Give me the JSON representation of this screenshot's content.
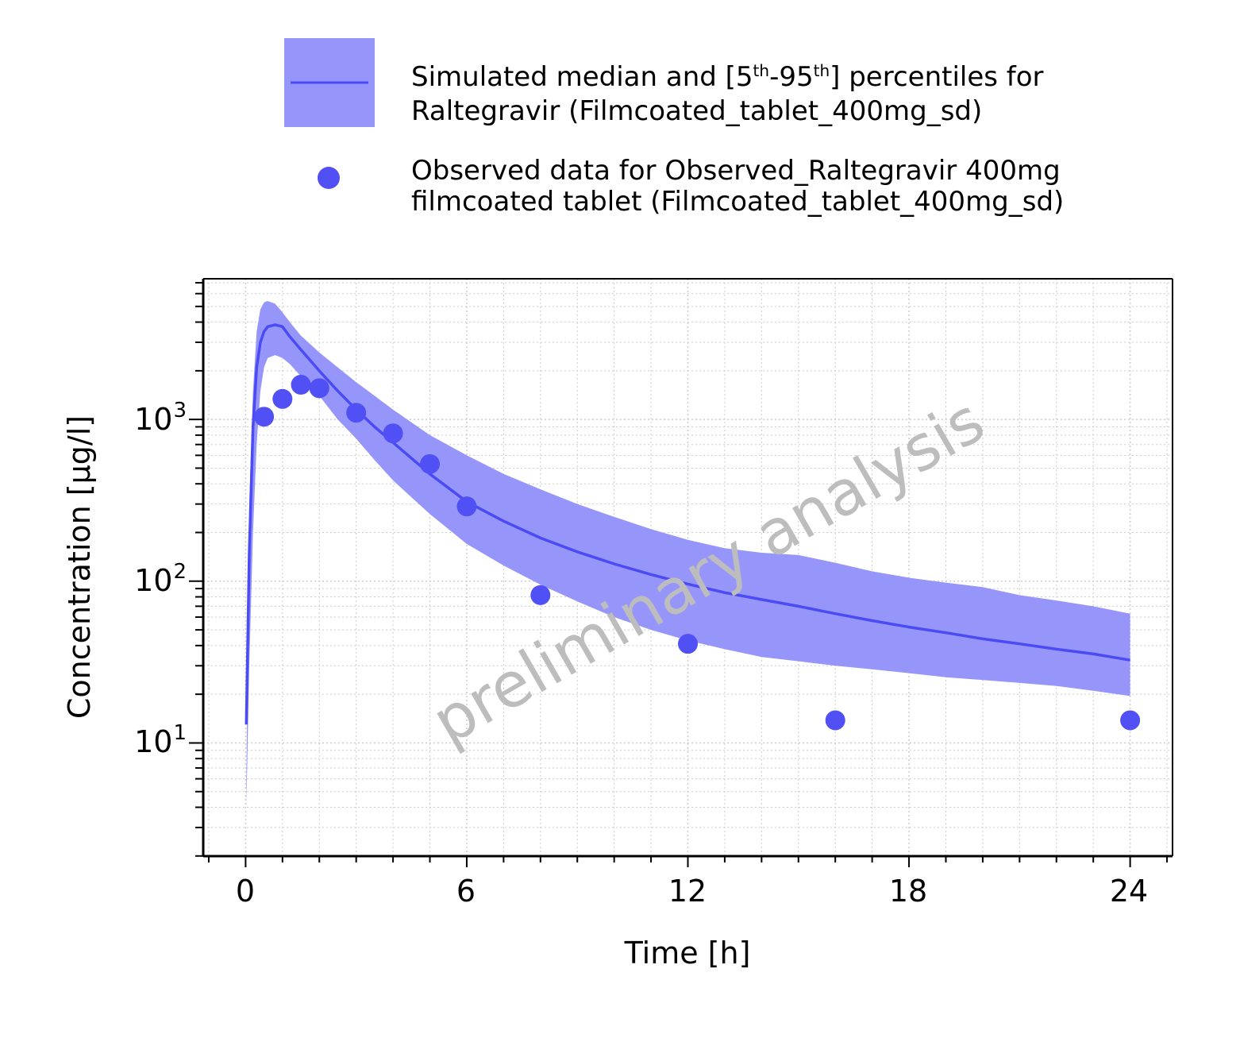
{
  "legend": {
    "band_text_line1_a": "Simulated median and [5",
    "band_sup1": "th",
    "band_text_line1_b": "-95",
    "band_sup2": "th",
    "band_text_line1_c": "] percentiles for",
    "band_text_line2": "Raltegravir (Filmcoated_tablet_400mg_sd)",
    "obs_text_line1": "Observed data for Observed_Raltegravir 400mg",
    "obs_text_line2": "filmcoated tablet (Filmcoated_tablet_400mg_sd)"
  },
  "watermark": "preliminary analysis",
  "colors": {
    "band": "#9696fa",
    "median": "#4b4bf5",
    "observed": "#5050f5",
    "grid": "#cccccc",
    "watermark": "#bdbdbd"
  },
  "chart_data": {
    "type": "line",
    "xlabel": "Time [h]",
    "ylabel": "Concentration [µg/l]",
    "xlim": [
      -1.15,
      25.15
    ],
    "ylim_log10": [
      0.3,
      3.87
    ],
    "y_scale": "log",
    "grid": true,
    "legend_position": "top",
    "x_ticks": [
      0,
      6,
      12,
      18,
      24
    ],
    "x_tick_labels": [
      "0",
      "6",
      "12",
      "18",
      "24"
    ],
    "y_ticks": [
      10,
      100,
      1000
    ],
    "y_tick_base": [
      "10",
      "10",
      "10"
    ],
    "y_tick_exp": [
      "1",
      "2",
      "3"
    ],
    "series": [
      {
        "kind": "band",
        "x": [
          0.02,
          0.1,
          0.2,
          0.3,
          0.4,
          0.5,
          0.6,
          0.8,
          1.0,
          1.2,
          1.5,
          2.0,
          2.5,
          3.0,
          3.5,
          4.0,
          5.0,
          6.0,
          7.0,
          8.0,
          9.0,
          10.0,
          11.0,
          12.0,
          13.0,
          14.0,
          15.0,
          16.0,
          17.0,
          18.0,
          19.0,
          20.0,
          21.0,
          22.0,
          23.0,
          24.0
        ],
        "upper": [
          6,
          300,
          1500,
          3500,
          4800,
          5300,
          5400,
          5200,
          4600,
          4000,
          3300,
          2600,
          2100,
          1700,
          1400,
          1150,
          800,
          600,
          460,
          370,
          300,
          250,
          210,
          180,
          160,
          150,
          145,
          130,
          115,
          105,
          98,
          92,
          82,
          76,
          70,
          63
        ],
        "lower": [
          4,
          30,
          200,
          700,
          1500,
          2100,
          2400,
          2500,
          2400,
          2200,
          1850,
          1400,
          1000,
          760,
          560,
          420,
          260,
          170,
          125,
          95,
          75,
          60,
          50,
          43,
          38,
          34,
          32,
          30,
          28.5,
          27,
          25.5,
          24.5,
          23.5,
          22.5,
          21,
          19.5
        ]
      },
      {
        "kind": "line",
        "x": [
          0.02,
          0.1,
          0.2,
          0.3,
          0.4,
          0.5,
          0.6,
          0.8,
          1.0,
          1.2,
          1.5,
          2.0,
          2.5,
          3.0,
          3.5,
          4.0,
          5.0,
          6.0,
          7.0,
          8.0,
          9.0,
          10.0,
          11.0,
          12.0,
          13.0,
          14.0,
          15.0,
          16.0,
          17.0,
          18.0,
          19.0,
          20.0,
          21.0,
          22.0,
          23.0,
          24.0
        ],
        "y": [
          13,
          150,
          900,
          2100,
          3000,
          3500,
          3750,
          3850,
          3750,
          3250,
          2700,
          2000,
          1500,
          1150,
          900,
          720,
          460,
          310,
          235,
          185,
          152,
          128,
          110,
          96,
          85,
          77,
          70,
          63,
          57,
          52,
          48,
          44,
          41,
          38,
          35.5,
          32.5
        ]
      },
      {
        "kind": "scatter",
        "x": [
          0.5,
          1.0,
          1.5,
          2.0,
          3.0,
          4.0,
          5.0,
          6.0,
          8.0,
          12.0,
          16.0,
          24.0
        ],
        "y": [
          1040,
          1340,
          1640,
          1560,
          1100,
          820,
          530,
          290,
          82,
          41,
          13.8,
          13.8
        ]
      }
    ]
  }
}
